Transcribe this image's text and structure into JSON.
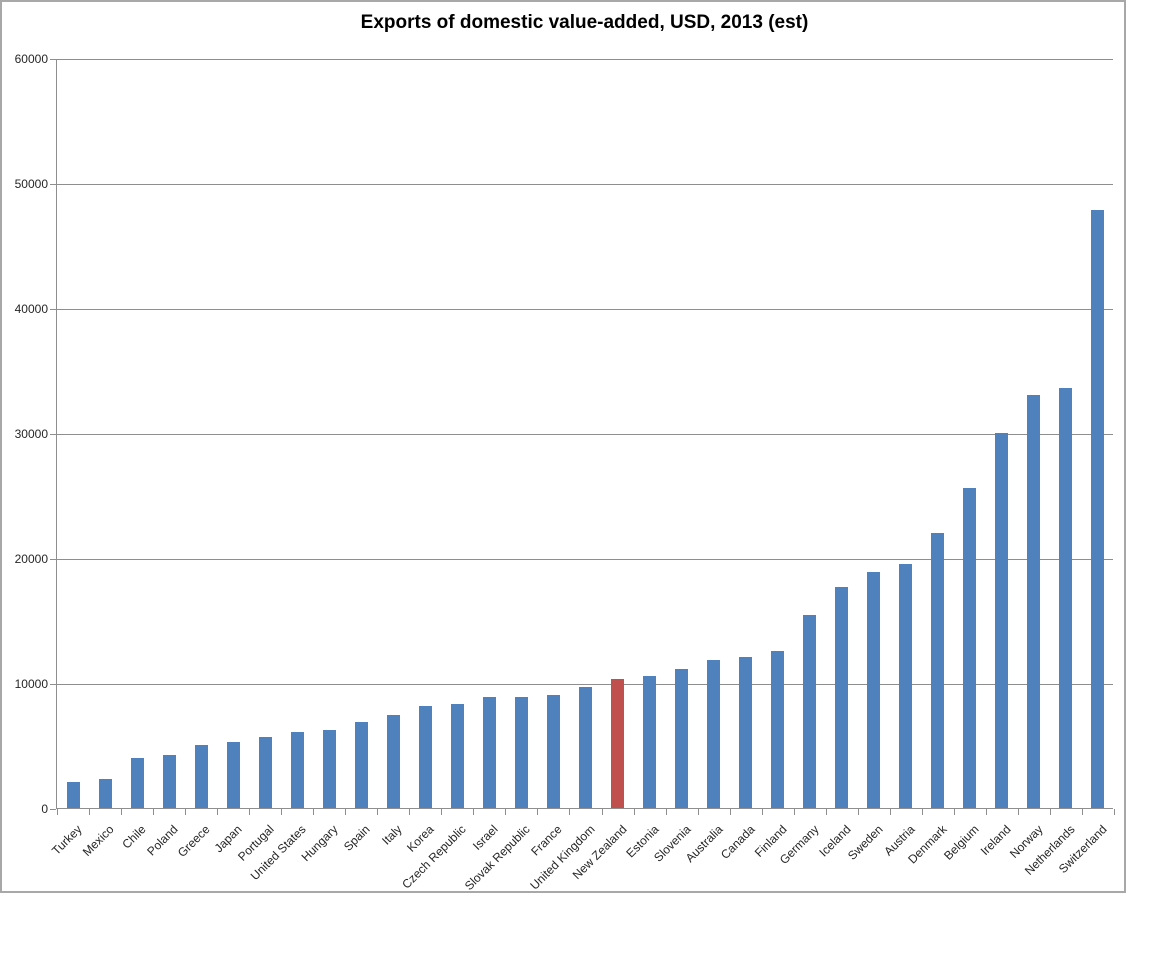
{
  "chart_data": {
    "type": "bar",
    "title": "Exports of domestic value-added, USD, 2013  (est)",
    "categories": [
      "Turkey",
      "Mexico",
      "Chile",
      "Poland",
      "Greece",
      "Japan",
      "Portugal",
      "United States",
      "Hungary",
      "Spain",
      "Italy",
      "Korea",
      "Czech Republic",
      "Israel",
      "Slovak Republic",
      "France",
      "United Kingdom",
      "New Zealand",
      "Estonia",
      "Slovenia",
      "Australia",
      "Canada",
      "Finland",
      "Germany",
      "Iceland",
      "Sweden",
      "Austria",
      "Denmark",
      "Belgium",
      "Ireland",
      "Norway",
      "Netherlands",
      "Switzerland"
    ],
    "values": [
      2050,
      2350,
      4000,
      4250,
      5000,
      5300,
      5700,
      6100,
      6200,
      6900,
      7450,
      8150,
      8350,
      8900,
      8900,
      9050,
      9700,
      10350,
      10550,
      11100,
      11800,
      12100,
      12550,
      15450,
      17700,
      18900,
      19500,
      22000,
      25600,
      30000,
      33000,
      33600,
      47800
    ],
    "highlighted_category": "New Zealand",
    "bar_color": "#4F81BD",
    "highlight_color": "#C0504D",
    "xlabel": "",
    "ylabel": "",
    "ylim": [
      0,
      60000
    ],
    "ytick_interval": 10000,
    "ytick_labels": [
      "0",
      "10000",
      "20000",
      "30000",
      "40000",
      "50000",
      "60000"
    ],
    "grid": "horizontal",
    "legend": "none",
    "gridline_color": "#8e8e8e",
    "axis_label_color": "#262626",
    "frame_border_color": "#a8a8a8"
  }
}
